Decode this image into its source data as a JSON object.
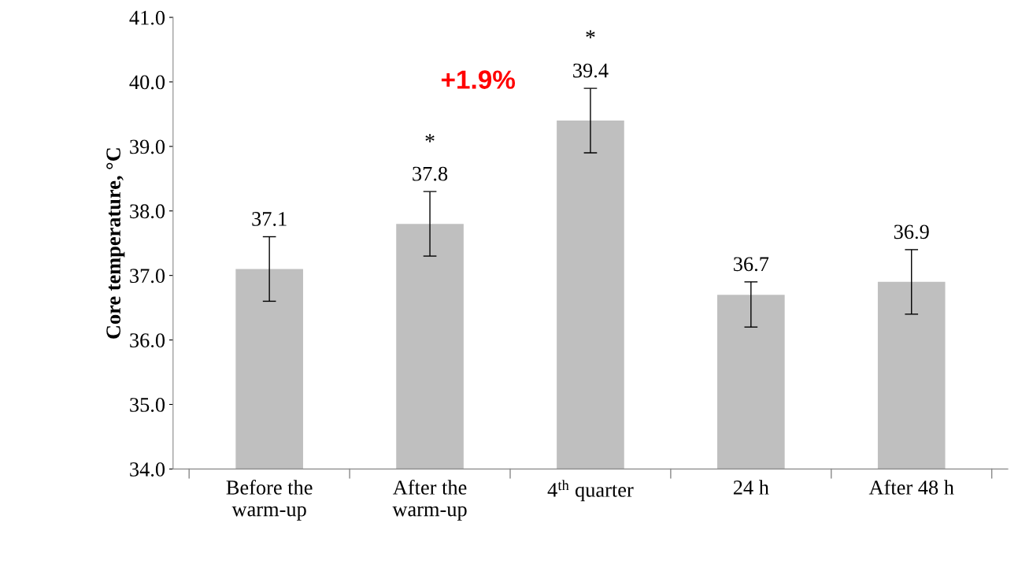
{
  "chart_data": {
    "type": "bar",
    "ylabel": "Core temperature, °C",
    "categories": [
      "Before the\nwarm-up",
      "After the\nwarm-up",
      "4$^{th}$ quarter",
      "24 h",
      "After 48 h"
    ],
    "values": [
      37.1,
      37.8,
      39.4,
      36.7,
      36.9
    ],
    "errors": [
      0.5,
      0.5,
      0.5,
      [
        36.2,
        36.9
      ],
      0.5
    ],
    "color": "#bfbfbf",
    "ylim": [
      34,
      41
    ],
    "yticks": [
      {
        "value": 34,
        "label": "34.0"
      },
      {
        "value": 35,
        "label": "35.0"
      },
      {
        "value": 36,
        "label": "36.0"
      },
      {
        "value": 37,
        "label": "37.0"
      },
      {
        "value": 38,
        "label": "38.0"
      },
      {
        "value": 39,
        "label": "39.0"
      },
      {
        "value": 40,
        "label": "40.0"
      },
      {
        "value": 41,
        "label": "41.0"
      }
    ],
    "data_labels": true,
    "grid": false,
    "legend": false,
    "annotations": [
      "*",
      "*",
      "+1.9%"
    ]
  }
}
